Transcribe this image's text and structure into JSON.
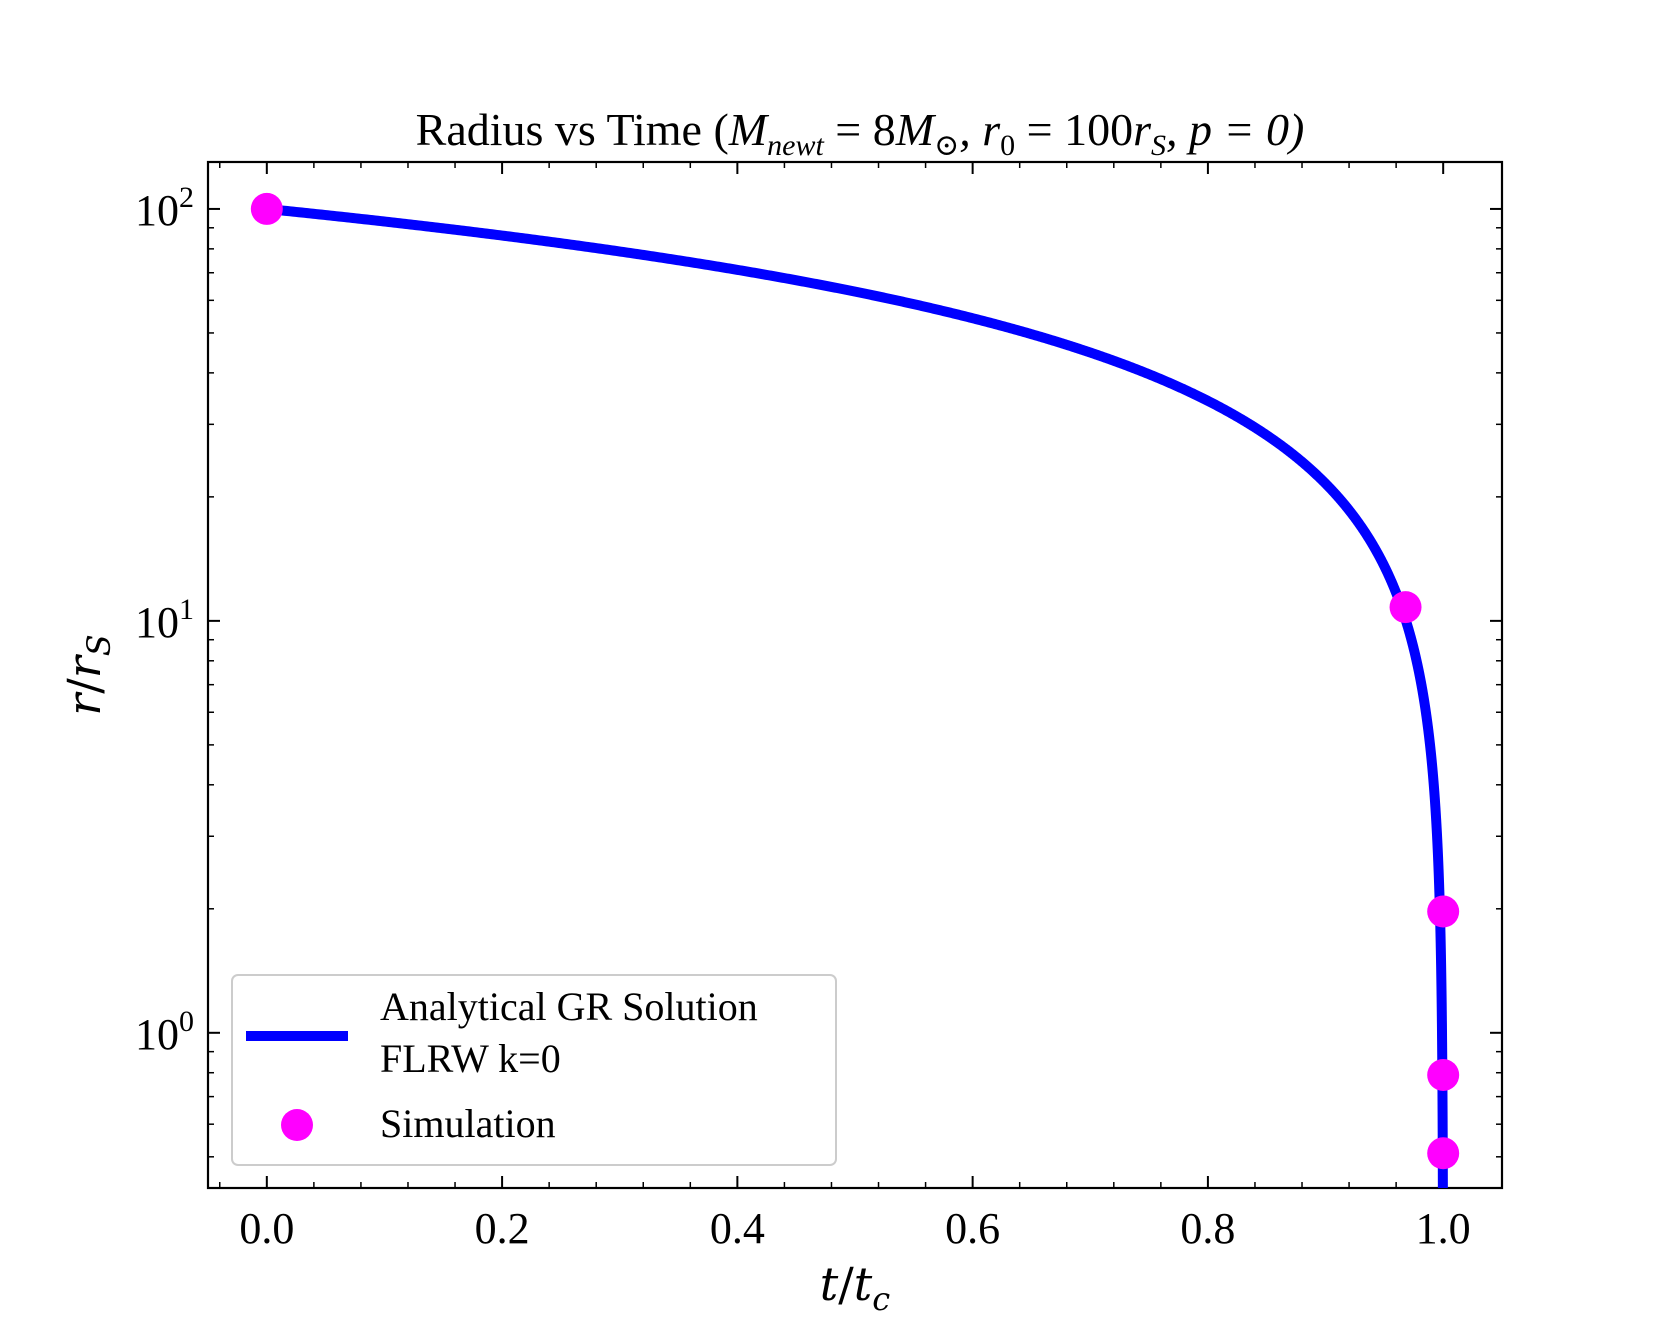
{
  "chart_data": {
    "type": "line",
    "title_parts": {
      "prefix": "Radius vs Time (",
      "m_symbol": "M",
      "m_sub": "newt",
      "eq1": " = 8",
      "msun_symbol": "M",
      "msun_sub": "⊙",
      "r0_symbol": ", r",
      "r0_sub": "0",
      "eq2": " = 100",
      "rs_symbol": "r",
      "rs_sub": "S",
      "p_part": ", p = 0)"
    },
    "xlabel": {
      "num": "t",
      "slash": "/",
      "den": "t",
      "den_sub": "c"
    },
    "ylabel": {
      "num": "r",
      "slash": "/",
      "den": "r",
      "den_sub": "S"
    },
    "x_ticks": [
      {
        "value": 0.0,
        "label": "0.0"
      },
      {
        "value": 0.2,
        "label": "0.2"
      },
      {
        "value": 0.4,
        "label": "0.4"
      },
      {
        "value": 0.6,
        "label": "0.6"
      },
      {
        "value": 0.8,
        "label": "0.8"
      },
      {
        "value": 1.0,
        "label": "1.0"
      }
    ],
    "y_ticks": [
      {
        "value": 1,
        "base": "10",
        "exp": "0"
      },
      {
        "value": 10,
        "base": "10",
        "exp": "1"
      },
      {
        "value": 100,
        "base": "10",
        "exp": "2"
      }
    ],
    "xlim": [
      -0.05,
      1.05
    ],
    "ylim": [
      0.42,
      130
    ],
    "yscale": "log",
    "legend_position": "lower-left",
    "series": [
      {
        "name": "Analytical GR Solution FLRW k=0",
        "legend_lines": [
          "Analytical GR Solution",
          "FLRW k=0"
        ],
        "kind": "line",
        "color": "#0000ff",
        "model": "r = r0 * (1 - t)^(2/3)",
        "r0": 100,
        "t_range": [
          0.0,
          1.0
        ]
      },
      {
        "name": "Simulation",
        "legend_lines": [
          "Simulation"
        ],
        "kind": "scatter",
        "color": "#ff00ff",
        "points": [
          {
            "x": 0.0,
            "y": 100
          },
          {
            "x": 0.968,
            "y": 10.8
          },
          {
            "x": 1.0,
            "y": 1.97
          },
          {
            "x": 1.0,
            "y": 0.79
          },
          {
            "x": 1.0,
            "y": 0.51
          }
        ]
      }
    ]
  }
}
